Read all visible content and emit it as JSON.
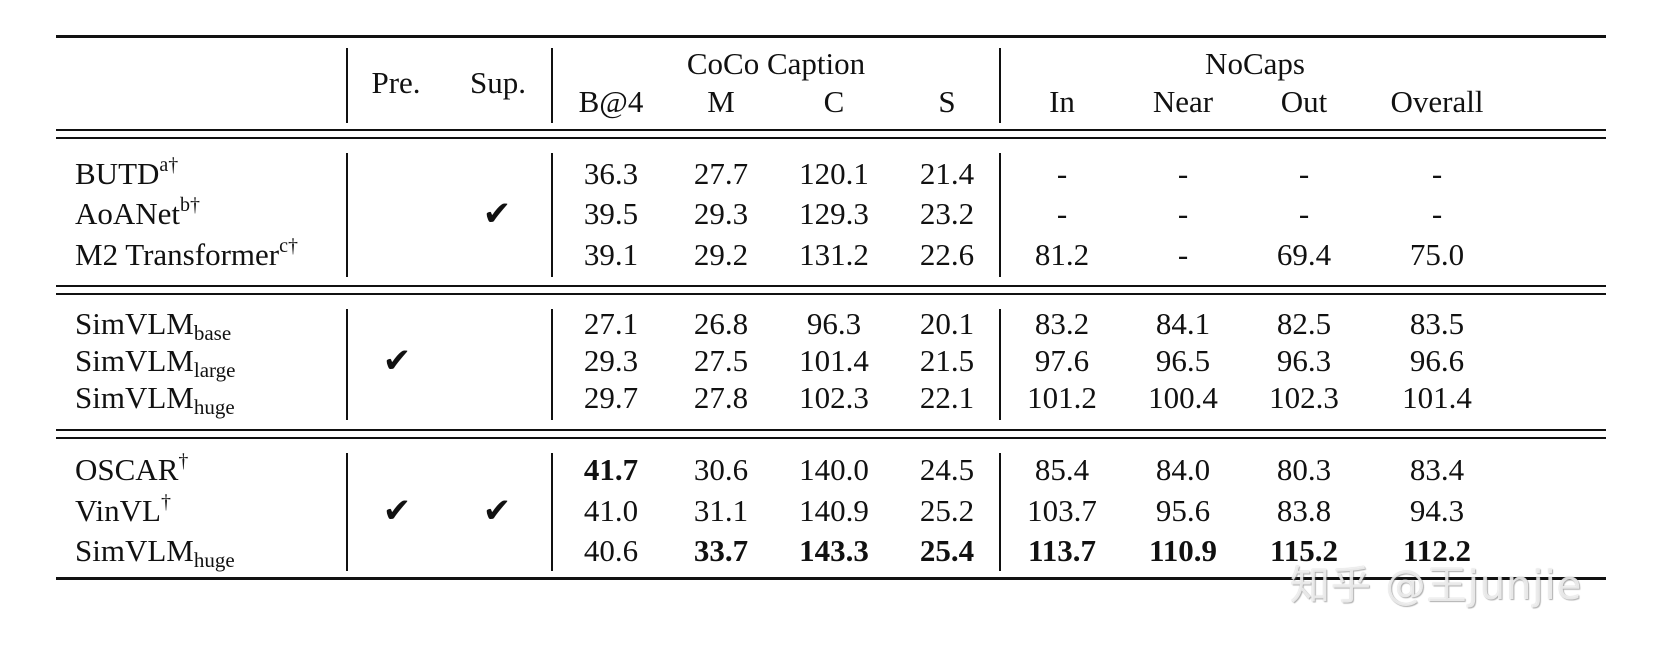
{
  "header": {
    "pre": "Pre.",
    "sup": "Sup.",
    "coco_group": "CoCo Caption",
    "nocaps_group": "NoCaps",
    "coco_cols": [
      "B@4",
      "M",
      "C",
      "S"
    ],
    "nocaps_cols": [
      "In",
      "Near",
      "Out",
      "Overall"
    ]
  },
  "groups": [
    {
      "pre": false,
      "sup": true,
      "rows": [
        {
          "name": "BUTD",
          "sup": "a†",
          "sub": "",
          "values": [
            "36.3",
            "27.7",
            "120.1",
            "21.4",
            "-",
            "-",
            "-",
            "-"
          ],
          "bold": []
        },
        {
          "name": "AoANet",
          "sup": "b†",
          "sub": "",
          "values": [
            "39.5",
            "29.3",
            "129.3",
            "23.2",
            "-",
            "-",
            "-",
            "-"
          ],
          "bold": []
        },
        {
          "name": "M2 Transformer",
          "sup": "c†",
          "sub": "",
          "values": [
            "39.1",
            "29.2",
            "131.2",
            "22.6",
            "81.2",
            "-",
            "69.4",
            "75.0"
          ],
          "bold": []
        }
      ]
    },
    {
      "pre": true,
      "sup": false,
      "rows": [
        {
          "name": "SimVLM",
          "sup": "",
          "sub": "base",
          "values": [
            "27.1",
            "26.8",
            "96.3",
            "20.1",
            "83.2",
            "84.1",
            "82.5",
            "83.5"
          ],
          "bold": []
        },
        {
          "name": "SimVLM",
          "sup": "",
          "sub": "large",
          "values": [
            "29.3",
            "27.5",
            "101.4",
            "21.5",
            "97.6",
            "96.5",
            "96.3",
            "96.6"
          ],
          "bold": []
        },
        {
          "name": "SimVLM",
          "sup": "",
          "sub": "huge",
          "values": [
            "29.7",
            "27.8",
            "102.3",
            "22.1",
            "101.2",
            "100.4",
            "102.3",
            "101.4"
          ],
          "bold": []
        }
      ]
    },
    {
      "pre": true,
      "sup": true,
      "rows": [
        {
          "name": "OSCAR",
          "sup": "†",
          "sub": "",
          "values": [
            "41.7",
            "30.6",
            "140.0",
            "24.5",
            "85.4",
            "84.0",
            "80.3",
            "83.4"
          ],
          "bold": [
            0
          ]
        },
        {
          "name": "VinVL",
          "sup": "†",
          "sub": "",
          "values": [
            "41.0",
            "31.1",
            "140.9",
            "25.2",
            "103.7",
            "95.6",
            "83.8",
            "94.3"
          ],
          "bold": []
        },
        {
          "name": "SimVLM",
          "sup": "",
          "sub": "huge",
          "values": [
            "40.6",
            "33.7",
            "143.3",
            "25.4",
            "113.7",
            "110.9",
            "115.2",
            "112.2"
          ],
          "bold": [
            1,
            2,
            3,
            4,
            5,
            6,
            7
          ]
        }
      ]
    }
  ],
  "checkmark_glyph": "✔",
  "watermark": "知乎 @王junjie"
}
